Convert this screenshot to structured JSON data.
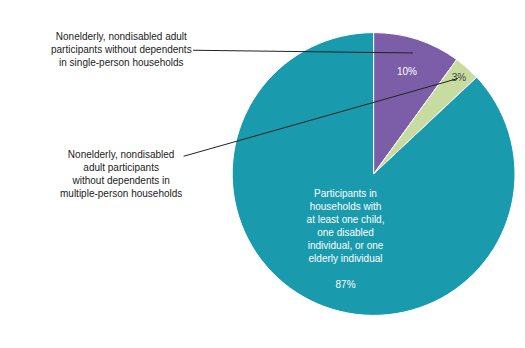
{
  "chart_data": {
    "type": "pie",
    "categories": [
      "Nonelderly, nondisabled adult\nparticipants without dependents\nin single-person households",
      "Nonelderly, nondisabled\nadult participants\nwithout dependents in\nmultiple-person households",
      "Participants in\nhouseholds with\nat least one child,\none disabled\nindividual, or one\nelderly individual"
    ],
    "values": [
      10,
      3,
      87
    ],
    "value_labels": [
      "10%",
      "3%",
      "87%"
    ],
    "colors": [
      "#7b5ea7",
      "#c8dba0",
      "#1a9aad"
    ]
  }
}
